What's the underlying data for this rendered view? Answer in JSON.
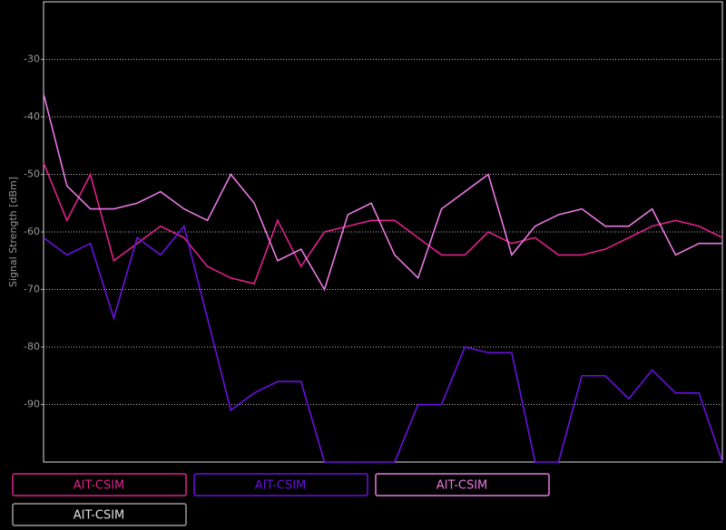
{
  "chart_data": {
    "type": "line",
    "y_label": "Signal Strength [dBm]",
    "categories": [
      null,
      null,
      null,
      null,
      null,
      null,
      null,
      null,
      null,
      null,
      null,
      null,
      null,
      null,
      null,
      null,
      null,
      null,
      null,
      null,
      null,
      null,
      null,
      null,
      null,
      null,
      null,
      null,
      null,
      null
    ],
    "ylim": [
      -100,
      -20
    ],
    "yticks": [
      -30,
      -40,
      -50,
      -60,
      -70,
      -80,
      -90
    ],
    "grid": true,
    "series": [
      {
        "name": "AIT-CSIM",
        "color": "#e0208c",
        "values": [
          -48,
          -58,
          -50,
          -65,
          -62,
          -59,
          -61,
          -66,
          -68,
          -69,
          -58,
          -66,
          -60,
          -59,
          -58,
          -58,
          -61,
          -64,
          -64,
          -60,
          -62,
          -61,
          -64,
          -64,
          -63,
          -61,
          -59,
          -58,
          -59,
          -61
        ]
      },
      {
        "name": "AIT-CSIM",
        "color": "#6a10e0",
        "values": [
          -61,
          -64,
          -62,
          -75,
          -61,
          -64,
          -59,
          -75,
          -91,
          -88,
          -86,
          -86,
          -100,
          -100,
          -100,
          -100,
          -90,
          -90,
          -80,
          -81,
          -81,
          -100,
          -100,
          -85,
          -85,
          -89,
          -84,
          -88,
          -88,
          -100
        ]
      },
      {
        "name": "AIT-CSIM",
        "color": "#e878e0",
        "values": [
          -36,
          -52,
          -56,
          -56,
          -55,
          -53,
          -56,
          -58,
          -50,
          -55,
          -65,
          -63,
          -70,
          -57,
          -55,
          -64,
          -68,
          -56,
          -53,
          -50,
          -64,
          -59,
          -57,
          -56,
          -59,
          -59,
          -56,
          -64,
          -62,
          -62
        ]
      },
      {
        "name": "AIT-CSIM",
        "color": "#9a9a9a",
        "values": [
          null,
          null,
          null,
          null,
          null,
          null,
          null,
          null,
          null,
          null,
          null,
          null,
          null,
          null,
          null,
          null,
          null,
          null,
          null,
          null,
          null,
          null,
          null,
          null,
          null,
          null,
          null,
          null,
          null,
          null
        ]
      }
    ]
  }
}
